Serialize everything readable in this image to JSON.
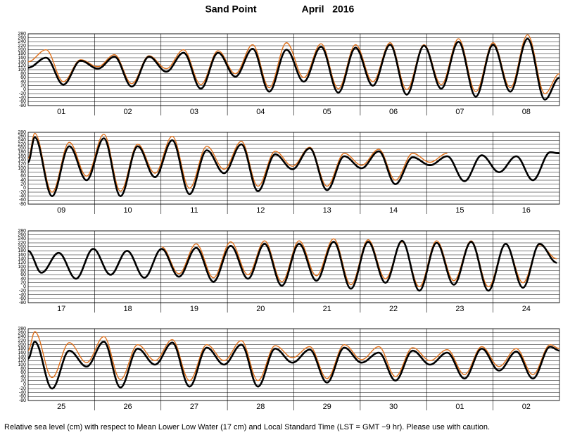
{
  "header": {
    "title": "Sand Point",
    "subtitle": "April   2016"
  },
  "footer": "Relative sea level (cm) with respect to Mean Lower Low Water (17 cm) and Local Standard Time (LST = GMT −9 hr). Please use with caution.",
  "chart_data": [
    {
      "type": "line",
      "categories": [
        "01",
        "02",
        "03",
        "04",
        "05",
        "06",
        "07",
        "08"
      ],
      "x": [
        0,
        0.27,
        0.53,
        0.79,
        1.05,
        1.3,
        1.56,
        1.82,
        2.08,
        2.34,
        2.6,
        2.86,
        3.12,
        3.38,
        3.63,
        3.89,
        4.15,
        4.41,
        4.67,
        4.93,
        5.19,
        5.45,
        5.7,
        5.96,
        6.22,
        6.48,
        6.74,
        7,
        7.26,
        7.52,
        7.78,
        8
      ],
      "xlim": [
        0,
        8
      ],
      "ylim": [
        -80,
        280
      ],
      "yticks": [
        -80,
        -60,
        -40,
        -20,
        0,
        20,
        40,
        60,
        80,
        100,
        120,
        140,
        160,
        180,
        200,
        220,
        240,
        260,
        280
      ],
      "grid": true,
      "series": [
        {
          "color": "#000000",
          "values": [
            110,
            160,
            25,
            145,
            105,
            165,
            15,
            165,
            90,
            185,
            5,
            185,
            65,
            205,
            -10,
            200,
            40,
            215,
            -15,
            210,
            20,
            225,
            -25,
            220,
            5,
            240,
            -35,
            225,
            -10,
            255,
            -50,
            60
          ]
        },
        {
          "color": "#e0701a",
          "values": [
            140,
            200,
            40,
            150,
            115,
            175,
            30,
            170,
            105,
            200,
            25,
            195,
            80,
            225,
            10,
            235,
            60,
            230,
            5,
            225,
            40,
            235,
            0,
            225,
            25,
            255,
            -10,
            235,
            10,
            275,
            -20,
            80
          ]
        }
      ]
    },
    {
      "type": "line",
      "categories": [
        "09",
        "10",
        "11",
        "12",
        "13",
        "14",
        "15",
        "16"
      ],
      "x": [
        0,
        0.1,
        0.36,
        0.62,
        0.88,
        1.14,
        1.39,
        1.65,
        1.91,
        2.17,
        2.43,
        2.69,
        2.95,
        3.21,
        3.46,
        3.72,
        3.98,
        4.24,
        4.5,
        4.76,
        5.02,
        5.28,
        5.53,
        5.79,
        6.05,
        6.31,
        6.57,
        6.83,
        7.09,
        7.35,
        7.6,
        7.86,
        8
      ],
      "xlim": [
        0,
        8
      ],
      "ylim": [
        -80,
        280
      ],
      "yticks": [
        -80,
        -60,
        -40,
        -20,
        0,
        20,
        40,
        60,
        80,
        100,
        120,
        140,
        160,
        180,
        200,
        220,
        240,
        260,
        280
      ],
      "grid": true,
      "series": [
        {
          "color": "#000000",
          "values": [
            130,
            255,
            -40,
            210,
            40,
            250,
            -40,
            210,
            55,
            240,
            -30,
            190,
            75,
            220,
            -15,
            170,
            95,
            200,
            -10,
            160,
            100,
            185,
            20,
            155,
            115,
            160,
            35,
            165,
            80,
            160,
            40,
            180,
            175
          ]
        },
        {
          "color": "#e0701a",
          "values": [
            150,
            275,
            -20,
            230,
            60,
            270,
            -15,
            220,
            75,
            260,
            0,
            210,
            95,
            235,
            10,
            185,
            110,
            205,
            10,
            175,
            115,
            195,
            40,
            175,
            130,
            175,
            null,
            null,
            null,
            null,
            null,
            null,
            null
          ]
        }
      ]
    },
    {
      "type": "line",
      "categories": [
        "17",
        "18",
        "19",
        "20",
        "21",
        "22",
        "23",
        "24"
      ],
      "x": [
        0,
        0.2,
        0.46,
        0.72,
        0.98,
        1.24,
        1.49,
        1.75,
        2.01,
        2.27,
        2.53,
        2.79,
        3.05,
        3.31,
        3.56,
        3.82,
        4.08,
        4.34,
        4.6,
        4.86,
        5.12,
        5.38,
        5.63,
        5.89,
        6.15,
        6.41,
        6.67,
        6.93,
        7.19,
        7.45,
        7.7,
        7.96
      ],
      "xlim": [
        0,
        8
      ],
      "ylim": [
        -80,
        280
      ],
      "yticks": [
        -80,
        -60,
        -40,
        -20,
        0,
        20,
        40,
        60,
        80,
        100,
        120,
        140,
        160,
        180,
        200,
        220,
        240,
        260,
        280
      ],
      "grid": true,
      "series": [
        {
          "color": "#000000",
          "values": [
            180,
            70,
            170,
            40,
            190,
            60,
            180,
            45,
            190,
            50,
            195,
            25,
            205,
            40,
            215,
            5,
            215,
            30,
            225,
            -10,
            225,
            20,
            230,
            -20,
            220,
            10,
            225,
            -20,
            215,
            -5,
            215,
            120
          ]
        },
        {
          "color": "#e0701a",
          "values": [
            null,
            null,
            null,
            null,
            null,
            null,
            null,
            null,
            200,
            65,
            215,
            45,
            225,
            60,
            230,
            25,
            230,
            55,
            240,
            10,
            235,
            40,
            225,
            0,
            230,
            30,
            230,
            0,
            215,
            20,
            210,
            140
          ]
        }
      ]
    },
    {
      "type": "line",
      "categories": [
        "25",
        "26",
        "27",
        "28",
        "29",
        "30",
        "01",
        "02"
      ],
      "x": [
        0,
        0.1,
        0.36,
        0.62,
        0.88,
        1.14,
        1.39,
        1.65,
        1.91,
        2.17,
        2.43,
        2.69,
        2.95,
        3.21,
        3.46,
        3.72,
        3.98,
        4.24,
        4.5,
        4.76,
        5.02,
        5.28,
        5.53,
        5.79,
        6.05,
        6.31,
        6.57,
        6.83,
        7.09,
        7.35,
        7.6,
        7.86,
        8
      ],
      "xlim": [
        0,
        8
      ],
      "ylim": [
        -80,
        280
      ],
      "yticks": [
        -80,
        -60,
        -40,
        -20,
        0,
        20,
        40,
        60,
        80,
        100,
        120,
        140,
        160,
        180,
        200,
        220,
        240,
        260,
        280
      ],
      "grid": true,
      "series": [
        {
          "color": "#000000",
          "values": [
            130,
            215,
            -20,
            170,
            90,
            215,
            -15,
            180,
            100,
            210,
            -10,
            185,
            100,
            200,
            -10,
            180,
            110,
            175,
            10,
            185,
            110,
            160,
            20,
            170,
            100,
            160,
            30,
            180,
            70,
            165,
            30,
            190,
            170
          ]
        },
        {
          "color": "#e0701a",
          "values": [
            170,
            265,
            35,
            210,
            110,
            240,
            25,
            200,
            120,
            225,
            20,
            200,
            120,
            220,
            20,
            195,
            135,
            190,
            30,
            200,
            125,
            190,
            40,
            185,
            120,
            175,
            50,
            190,
            90,
            180,
            50,
            200,
            180
          ]
        }
      ]
    }
  ]
}
